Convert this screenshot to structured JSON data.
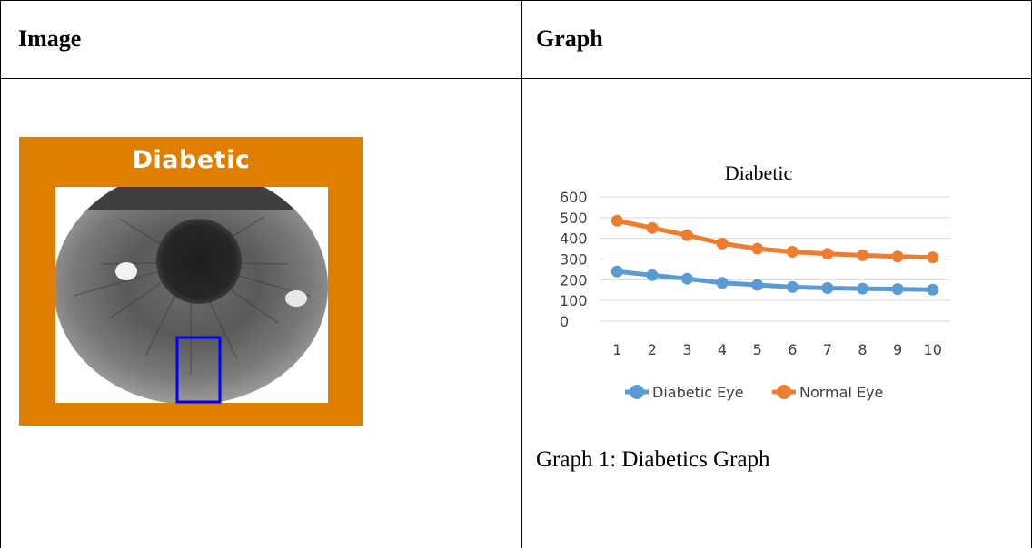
{
  "table": {
    "headers": [
      "Image",
      "Graph"
    ]
  },
  "image_panel": {
    "title": "Diabetic",
    "colors": {
      "frame": "#E07E00",
      "highlight_box": "#0000FF"
    }
  },
  "chart_data": {
    "type": "line",
    "title": "Diabetic",
    "x": [
      1,
      2,
      3,
      4,
      5,
      6,
      7,
      8,
      9,
      10
    ],
    "yticks": [
      0,
      100,
      200,
      300,
      400,
      500,
      600
    ],
    "ylim": [
      0,
      600
    ],
    "grid": true,
    "legend": "bottom",
    "series": [
      {
        "name": "Diabetic Eye",
        "color": "#5B9BD5",
        "values": [
          240,
          222,
          205,
          185,
          175,
          165,
          160,
          157,
          155,
          152
        ]
      },
      {
        "name": "Normal Eye",
        "color": "#ED7D31",
        "values": [
          485,
          450,
          415,
          375,
          350,
          335,
          325,
          318,
          312,
          308
        ]
      }
    ]
  },
  "caption": "Graph 1: Diabetics Graph"
}
